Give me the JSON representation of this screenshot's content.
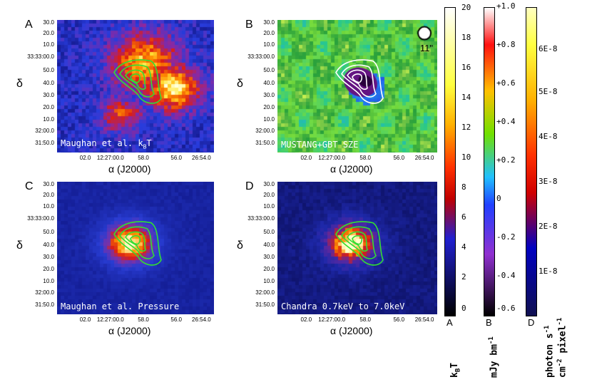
{
  "panels": [
    {
      "id": "A",
      "label": "Maughan et al. k",
      "label_sub": "B",
      "label_tail": "T"
    },
    {
      "id": "B",
      "label": "MUSTANG+GBT SZE",
      "beam": "11\""
    },
    {
      "id": "C",
      "label": "Maughan et al. Pressure"
    },
    {
      "id": "D",
      "label": "Chandra 0.7keV to 7.0keV"
    }
  ],
  "axes": {
    "y_ticks": [
      "30.0",
      "20.0",
      "10.0",
      "33:33:00.0",
      "50.0",
      "40.0",
      "30.0",
      "20.0",
      "10.0",
      "32:00.0",
      "31:50.0"
    ],
    "x_ticks": [
      "02.0",
      "12:27:00.0",
      "58.0",
      "56.0",
      "26:54.0"
    ],
    "xlabel": "α (J2000)",
    "ylabel": "δ"
  },
  "colorbars": [
    {
      "id": "A",
      "ticks": [
        "20",
        "18",
        "16",
        "14",
        "12",
        "10",
        "8",
        "6",
        "4",
        "2",
        "0"
      ],
      "unit_main": "k",
      "unit_sub": "B",
      "unit_tail": "T",
      "gradient": "#ffffff,#ffff40,#ffb000,#ff3000,#c00000,#2020d0,#000000"
    },
    {
      "id": "B",
      "ticks": [
        "+1.0",
        "+0.8",
        "+0.6",
        "+0.4",
        "+0.2",
        "0",
        "-0.2",
        "-0.4",
        "-0.6"
      ],
      "unit": "mJy bm",
      "unit_sup": "-1",
      "gradient": "#ffffff,#ff1010,#ffc000,#70e000,#20c0ff,#2040ff,#9030d0,#000000"
    },
    {
      "id": "D",
      "ticks": [
        "6E-8",
        "5E-8",
        "4E-8",
        "3E-8",
        "2E-8",
        "1E-8"
      ],
      "unit_line1": "photon s",
      "unit_line1_sup": "-1",
      "unit_line2": "cm",
      "unit_line2_sup": "-2",
      "unit_line2_mid": " pixel",
      "unit_line2_sup2": "-1",
      "gradient": "#ffffc0,#ffff40,#ffb000,#ff3000,#d00000,#0000c0,#101050"
    }
  ]
}
